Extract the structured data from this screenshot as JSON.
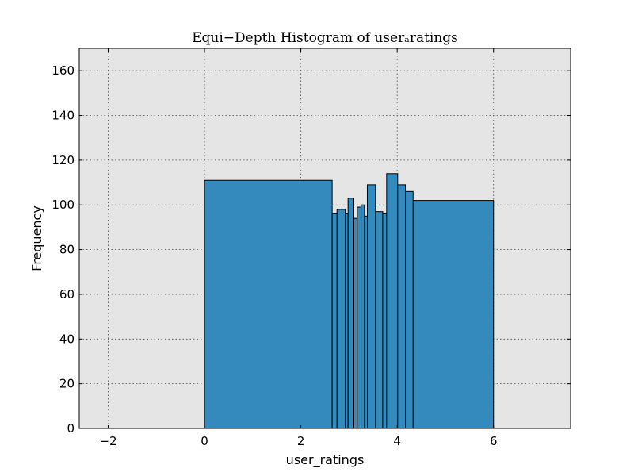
{
  "chart_data": {
    "type": "bar",
    "title": "Equi−Depth Histogram of userₐratings",
    "xlabel": "user_ratings",
    "ylabel": "Frequency",
    "xlim": [
      -2.6,
      7.6
    ],
    "ylim": [
      0,
      170
    ],
    "xticks": [
      -2,
      0,
      2,
      4,
      6
    ],
    "xtick_labels": [
      "−2",
      "0",
      "2",
      "4",
      "6"
    ],
    "yticks": [
      0,
      20,
      40,
      60,
      80,
      100,
      120,
      140,
      160
    ],
    "ytick_labels": [
      "0",
      "20",
      "40",
      "60",
      "80",
      "100",
      "120",
      "140",
      "160"
    ],
    "grid": true,
    "plot_background": "#e5e5e5",
    "bar_color": "#348abd",
    "bins": [
      {
        "x0": 0.0,
        "x1": 2.65,
        "value": 111
      },
      {
        "x0": 2.65,
        "x1": 2.75,
        "value": 96
      },
      {
        "x0": 2.75,
        "x1": 2.92,
        "value": 98
      },
      {
        "x0": 2.92,
        "x1": 2.98,
        "value": 96
      },
      {
        "x0": 2.98,
        "x1": 3.1,
        "value": 103
      },
      {
        "x0": 3.1,
        "x1": 3.17,
        "value": 94
      },
      {
        "x0": 3.17,
        "x1": 3.25,
        "value": 99
      },
      {
        "x0": 3.25,
        "x1": 3.32,
        "value": 100
      },
      {
        "x0": 3.32,
        "x1": 3.38,
        "value": 95
      },
      {
        "x0": 3.38,
        "x1": 3.55,
        "value": 109
      },
      {
        "x0": 3.55,
        "x1": 3.7,
        "value": 97
      },
      {
        "x0": 3.7,
        "x1": 3.78,
        "value": 96
      },
      {
        "x0": 3.78,
        "x1": 4.01,
        "value": 114
      },
      {
        "x0": 4.01,
        "x1": 4.17,
        "value": 109
      },
      {
        "x0": 4.17,
        "x1": 4.33,
        "value": 106
      },
      {
        "x0": 4.33,
        "x1": 6.0,
        "value": 102
      }
    ]
  }
}
